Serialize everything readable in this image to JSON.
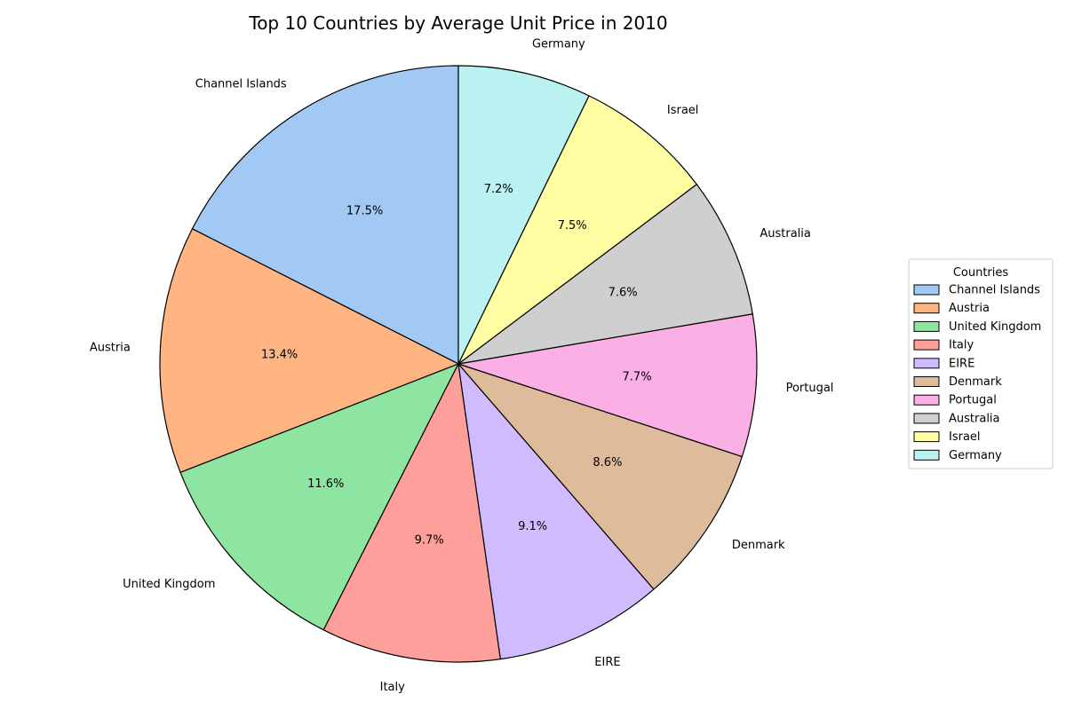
{
  "chart_data": {
    "type": "pie",
    "title": "Top 10 Countries by Average Unit Price in 2010",
    "start": "top",
    "direction": "counterclockwise",
    "slices": [
      {
        "label": "Channel Islands",
        "value": 17.5,
        "pct_label": "17.5%",
        "color": "#a1c9f4"
      },
      {
        "label": "Austria",
        "value": 13.4,
        "pct_label": "13.4%",
        "color": "#ffb482"
      },
      {
        "label": "United Kingdom",
        "value": 11.6,
        "pct_label": "11.6%",
        "color": "#8de5a1"
      },
      {
        "label": "Italy",
        "value": 9.7,
        "pct_label": "9.7%",
        "color": "#ff9f9b"
      },
      {
        "label": "EIRE",
        "value": 9.1,
        "pct_label": "9.1%",
        "color": "#d0bbff"
      },
      {
        "label": "Denmark",
        "value": 8.6,
        "pct_label": "8.6%",
        "color": "#debb9b"
      },
      {
        "label": "Portugal",
        "value": 7.7,
        "pct_label": "7.7%",
        "color": "#fab0e4"
      },
      {
        "label": "Australia",
        "value": 7.6,
        "pct_label": "7.6%",
        "color": "#cfcfcf"
      },
      {
        "label": "Israel",
        "value": 7.5,
        "pct_label": "7.5%",
        "color": "#fffea3"
      },
      {
        "label": "Germany",
        "value": 7.2,
        "pct_label": "7.2%",
        "color": "#b9f2f0"
      }
    ],
    "legend": {
      "title": "Countries",
      "placement": "right",
      "entries": [
        "Channel Islands",
        "Austria",
        "United Kingdom",
        "Italy",
        "EIRE",
        "Denmark",
        "Portugal",
        "Australia",
        "Israel",
        "Germany"
      ]
    }
  }
}
